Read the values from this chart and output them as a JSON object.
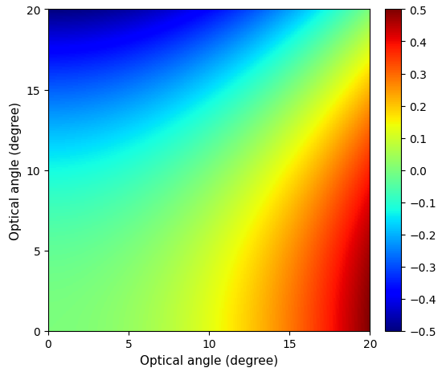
{
  "xmin": 0,
  "xmax": 20,
  "ymin": 0,
  "ymax": 20,
  "zmin": -0.5,
  "zmax": 0.5,
  "xlabel": "Optical angle (degree)",
  "ylabel": "Optical angle (degree)",
  "xticks": [
    0,
    5,
    10,
    15,
    20
  ],
  "yticks": [
    0,
    5,
    10,
    15,
    20
  ],
  "colorbar_ticks": [
    0.5,
    0.4,
    0.3,
    0.2,
    0.1,
    0.0,
    -0.1,
    -0.2,
    -0.3,
    -0.4,
    -0.5
  ],
  "cmap": "jet",
  "n_points": 300,
  "figsize": [
    5.5,
    4.64
  ],
  "dpi": 100,
  "xlabel_fontsize": 11,
  "ylabel_fontsize": 11,
  "tick_fontsize": 10,
  "cbar_tick_fontsize": 10
}
